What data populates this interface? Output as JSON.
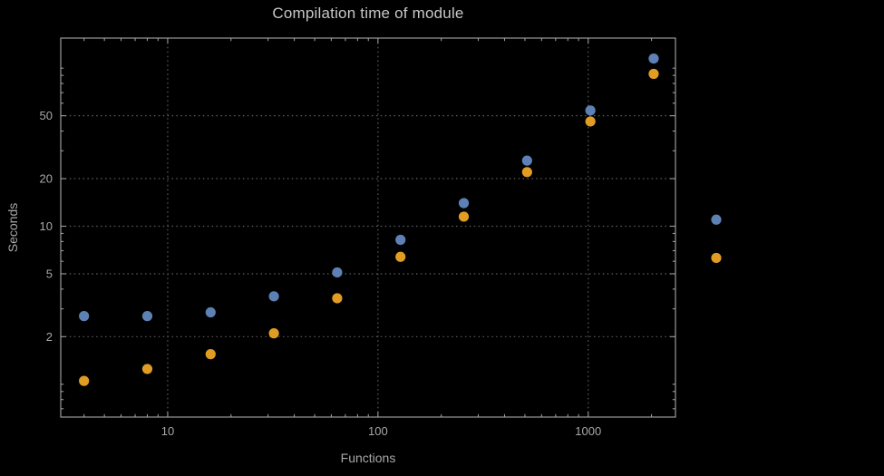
{
  "colors": {
    "background": "#000000",
    "frame": "#9a9a9a",
    "grid": "#5f5f5f",
    "title_text": "#c7c7c7",
    "label_text": "#a8a8a8",
    "tick_text": "#a8a8a8",
    "blue": "#5e81b5",
    "orange": "#e19c24"
  },
  "chart_data": {
    "type": "scatter",
    "title": "Compilation time of module",
    "xlabel": "Functions",
    "ylabel": "Seconds",
    "x_scale": "log",
    "y_scale": "log",
    "xlim": [
      3.1,
      2600
    ],
    "ylim": [
      0.62,
      155
    ],
    "x_ticks": [
      10,
      100,
      1000
    ],
    "y_ticks": [
      2,
      5,
      10,
      20,
      50
    ],
    "grid": true,
    "grid_style": "dotted",
    "legend_position": "right-outside",
    "series": [
      {
        "name": "blue-series",
        "color": "#5e81b5",
        "points": [
          [
            4,
            2.7
          ],
          [
            8,
            2.7
          ],
          [
            16,
            2.85
          ],
          [
            32,
            3.6
          ],
          [
            64,
            5.1
          ],
          [
            128,
            8.2
          ],
          [
            256,
            14
          ],
          [
            512,
            26
          ],
          [
            1024,
            54
          ],
          [
            2048,
            115
          ]
        ]
      },
      {
        "name": "orange-series",
        "color": "#e19c24",
        "points": [
          [
            4,
            1.05
          ],
          [
            8,
            1.25
          ],
          [
            16,
            1.55
          ],
          [
            32,
            2.1
          ],
          [
            64,
            3.5
          ],
          [
            128,
            6.4
          ],
          [
            256,
            11.5
          ],
          [
            512,
            22
          ],
          [
            1024,
            46
          ],
          [
            2048,
            92
          ]
        ]
      }
    ],
    "legend": {
      "entries": [
        {
          "name": "blue-series-marker",
          "color": "#5e81b5",
          "value": 11
        },
        {
          "name": "orange-series-marker",
          "color": "#e19c24",
          "value": 6.3
        }
      ]
    }
  }
}
